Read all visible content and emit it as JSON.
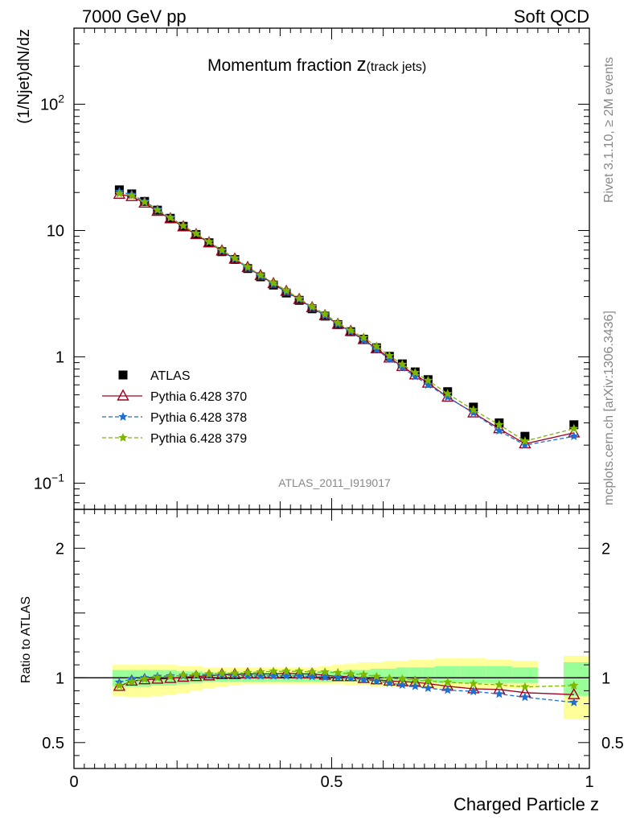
{
  "header": {
    "left": "7000 GeV pp",
    "right": "Soft QCD"
  },
  "side": {
    "top": "Rivet 3.1.10, ≥ 2M events",
    "bottom": "mcplots.cern.ch [arXiv:1306.3436]"
  },
  "watermark": "ATLAS_2011_I919017",
  "chart_data": {
    "type": "line",
    "title_main": "Momentum fraction ",
    "title_z": "z",
    "title_sub": "(track jets)",
    "ylabel": "(1/Njet)dN/dz",
    "ratio_ylabel": "Ratio to ATLAS",
    "xlabel": "Charged Particle z",
    "xlim": [
      0,
      1
    ],
    "ylim": [
      0.062,
      400
    ],
    "yscale": "log",
    "ratio_ylim": [
      0.3,
      2.3
    ],
    "main_yticks": [
      {
        "v": 0.1,
        "base": "10",
        "exp": "−1"
      },
      {
        "v": 1,
        "label": "1"
      },
      {
        "v": 10,
        "label": "10"
      },
      {
        "v": 100,
        "base": "10",
        "exp": "2"
      }
    ],
    "xticks": [
      {
        "v": 0,
        "label": "0"
      },
      {
        "v": 0.5,
        "label": "0.5"
      },
      {
        "v": 1,
        "label": "1"
      }
    ],
    "ratio_yticks": [
      {
        "v": 0.5,
        "label": "0.5"
      },
      {
        "v": 1,
        "label": "1"
      },
      {
        "v": 2,
        "label": "2"
      }
    ],
    "x": [
      0.088,
      0.112,
      0.137,
      0.162,
      0.187,
      0.212,
      0.237,
      0.262,
      0.287,
      0.312,
      0.337,
      0.362,
      0.387,
      0.412,
      0.437,
      0.462,
      0.487,
      0.512,
      0.537,
      0.562,
      0.587,
      0.612,
      0.637,
      0.662,
      0.687,
      0.725,
      0.775,
      0.825,
      0.875,
      0.97
    ],
    "series": [
      {
        "name": "ATLAS",
        "color": "#000000",
        "marker": "square",
        "values": [
          21.0,
          19.5,
          17.0,
          14.5,
          12.5,
          10.8,
          9.3,
          8.0,
          6.8,
          5.9,
          5.0,
          4.3,
          3.7,
          3.2,
          2.8,
          2.4,
          2.1,
          1.8,
          1.58,
          1.38,
          1.18,
          1.01,
          0.88,
          0.76,
          0.66,
          0.53,
          0.4,
          0.3,
          0.235,
          0.29
        ]
      },
      {
        "name": "Pythia 6.428 370",
        "color": "#a0001e",
        "marker": "triangle",
        "dash": "",
        "values": [
          19.4,
          18.6,
          16.5,
          14.2,
          12.4,
          10.7,
          9.3,
          8.0,
          6.9,
          5.95,
          5.1,
          4.4,
          3.8,
          3.3,
          2.85,
          2.45,
          2.12,
          1.81,
          1.59,
          1.37,
          1.16,
          0.98,
          0.84,
          0.72,
          0.62,
          0.48,
          0.36,
          0.27,
          0.205,
          0.25
        ]
      },
      {
        "name": "Pythia 6.428 378",
        "color": "#1f6fd0",
        "marker": "star",
        "dash": "5,3",
        "values": [
          20.3,
          19.3,
          17.0,
          14.7,
          12.7,
          10.9,
          9.5,
          8.1,
          6.9,
          5.95,
          5.05,
          4.35,
          3.75,
          3.25,
          2.85,
          2.44,
          2.12,
          1.81,
          1.58,
          1.35,
          1.14,
          0.96,
          0.82,
          0.7,
          0.6,
          0.48,
          0.36,
          0.26,
          0.2,
          0.235
        ]
      },
      {
        "name": "Pythia 6.428 379",
        "color": "#7cb800",
        "marker": "star",
        "dash": "5,3",
        "values": [
          19.6,
          18.9,
          16.8,
          14.5,
          12.6,
          10.9,
          9.45,
          8.15,
          7.0,
          6.05,
          5.15,
          4.45,
          3.85,
          3.35,
          2.9,
          2.5,
          2.18,
          1.86,
          1.62,
          1.42,
          1.21,
          1.02,
          0.87,
          0.75,
          0.65,
          0.51,
          0.38,
          0.29,
          0.215,
          0.27
        ]
      }
    ],
    "ratio_series": [
      {
        "name": "Pythia 6.428 370",
        "values": [
          0.935,
          0.975,
          0.985,
          0.99,
          0.995,
          1.005,
          1.01,
          1.015,
          1.025,
          1.025,
          1.03,
          1.03,
          1.03,
          1.035,
          1.03,
          1.03,
          1.02,
          1.01,
          1.01,
          0.995,
          0.985,
          0.975,
          0.97,
          0.965,
          0.955,
          0.935,
          0.915,
          0.91,
          0.885,
          0.87
        ]
      },
      {
        "name": "Pythia 6.428 378",
        "values": [
          0.965,
          0.99,
          1.0,
          1.01,
          1.015,
          1.015,
          1.02,
          1.02,
          1.02,
          1.02,
          1.015,
          1.015,
          1.015,
          1.015,
          1.015,
          1.01,
          1.005,
          1.005,
          1.0,
          0.985,
          0.975,
          0.96,
          0.945,
          0.935,
          0.92,
          0.905,
          0.895,
          0.875,
          0.85,
          0.81
        ]
      },
      {
        "name": "Pythia 6.428 379",
        "values": [
          0.94,
          0.97,
          0.99,
          1.0,
          1.01,
          1.02,
          1.025,
          1.03,
          1.035,
          1.035,
          1.04,
          1.045,
          1.05,
          1.05,
          1.05,
          1.045,
          1.045,
          1.04,
          1.03,
          1.025,
          1.01,
          0.995,
          0.99,
          0.98,
          0.975,
          0.965,
          0.955,
          0.945,
          0.93,
          0.94
        ]
      }
    ],
    "bands": {
      "outer_color": "#ffff99",
      "inner_color": "#99ff99",
      "bins": [
        {
          "x0": 0.075,
          "x1": 0.1,
          "y": [
            0.86,
            1.1
          ],
          "g": [
            0.93,
            1.06
          ]
        },
        {
          "x0": 0.1,
          "x1": 0.125,
          "y": [
            0.85,
            1.1
          ],
          "g": [
            0.93,
            1.06
          ]
        },
        {
          "x0": 0.125,
          "x1": 0.15,
          "y": [
            0.85,
            1.1
          ],
          "g": [
            0.93,
            1.06
          ]
        },
        {
          "x0": 0.15,
          "x1": 0.175,
          "y": [
            0.86,
            1.1
          ],
          "g": [
            0.94,
            1.06
          ]
        },
        {
          "x0": 0.175,
          "x1": 0.2,
          "y": [
            0.87,
            1.1
          ],
          "g": [
            0.94,
            1.06
          ]
        },
        {
          "x0": 0.2,
          "x1": 0.225,
          "y": [
            0.88,
            1.09
          ],
          "g": [
            0.95,
            1.05
          ]
        },
        {
          "x0": 0.225,
          "x1": 0.25,
          "y": [
            0.9,
            1.09
          ],
          "g": [
            0.96,
            1.05
          ]
        },
        {
          "x0": 0.25,
          "x1": 0.275,
          "y": [
            0.92,
            1.08
          ],
          "g": [
            0.97,
            1.04
          ]
        },
        {
          "x0": 0.275,
          "x1": 0.3,
          "y": [
            0.93,
            1.08
          ],
          "g": [
            0.97,
            1.04
          ]
        },
        {
          "x0": 0.3,
          "x1": 0.325,
          "y": [
            0.94,
            1.08
          ],
          "g": [
            0.97,
            1.04
          ]
        },
        {
          "x0": 0.325,
          "x1": 0.35,
          "y": [
            0.95,
            1.08
          ],
          "g": [
            0.97,
            1.04
          ]
        },
        {
          "x0": 0.35,
          "x1": 0.375,
          "y": [
            0.95,
            1.08
          ],
          "g": [
            0.97,
            1.04
          ]
        },
        {
          "x0": 0.375,
          "x1": 0.4,
          "y": [
            0.95,
            1.08
          ],
          "g": [
            0.97,
            1.04
          ]
        },
        {
          "x0": 0.4,
          "x1": 0.425,
          "y": [
            0.95,
            1.08
          ],
          "g": [
            0.97,
            1.04
          ]
        },
        {
          "x0": 0.425,
          "x1": 0.45,
          "y": [
            0.95,
            1.08
          ],
          "g": [
            0.97,
            1.04
          ]
        },
        {
          "x0": 0.45,
          "x1": 0.475,
          "y": [
            0.95,
            1.08
          ],
          "g": [
            0.97,
            1.04
          ]
        },
        {
          "x0": 0.475,
          "x1": 0.5,
          "y": [
            0.95,
            1.09
          ],
          "g": [
            0.97,
            1.05
          ]
        },
        {
          "x0": 0.5,
          "x1": 0.525,
          "y": [
            0.95,
            1.1
          ],
          "g": [
            0.97,
            1.05
          ]
        },
        {
          "x0": 0.525,
          "x1": 0.55,
          "y": [
            0.94,
            1.11
          ],
          "g": [
            0.97,
            1.06
          ]
        },
        {
          "x0": 0.55,
          "x1": 0.575,
          "y": [
            0.94,
            1.12
          ],
          "g": [
            0.97,
            1.06
          ]
        },
        {
          "x0": 0.575,
          "x1": 0.6,
          "y": [
            0.93,
            1.12
          ],
          "g": [
            0.97,
            1.07
          ]
        },
        {
          "x0": 0.6,
          "x1": 0.625,
          "y": [
            0.93,
            1.13
          ],
          "g": [
            0.97,
            1.07
          ]
        },
        {
          "x0": 0.625,
          "x1": 0.65,
          "y": [
            0.93,
            1.13
          ],
          "g": [
            0.97,
            1.08
          ]
        },
        {
          "x0": 0.65,
          "x1": 0.675,
          "y": [
            0.93,
            1.14
          ],
          "g": [
            0.97,
            1.08
          ]
        },
        {
          "x0": 0.675,
          "x1": 0.7,
          "y": [
            0.93,
            1.14
          ],
          "g": [
            0.97,
            1.08
          ]
        },
        {
          "x0": 0.7,
          "x1": 0.75,
          "y": [
            0.92,
            1.15
          ],
          "g": [
            0.96,
            1.09
          ]
        },
        {
          "x0": 0.75,
          "x1": 0.8,
          "y": [
            0.92,
            1.15
          ],
          "g": [
            0.96,
            1.09
          ]
        },
        {
          "x0": 0.8,
          "x1": 0.85,
          "y": [
            0.92,
            1.14
          ],
          "g": [
            0.96,
            1.09
          ]
        },
        {
          "x0": 0.85,
          "x1": 0.9,
          "y": [
            0.92,
            1.13
          ],
          "g": [
            0.96,
            1.08
          ]
        },
        {
          "x0": 0.95,
          "x1": 1.0,
          "y": [
            0.68,
            1.17
          ],
          "g": [
            0.86,
            1.12
          ]
        }
      ]
    }
  }
}
